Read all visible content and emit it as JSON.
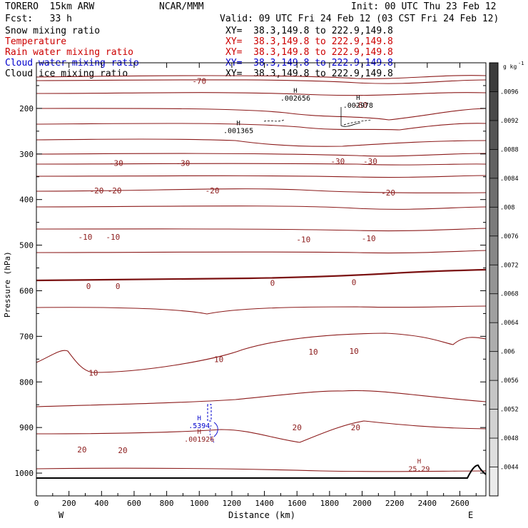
{
  "header": {
    "model": "TORERO  15km ARW",
    "org": "NCAR/MMM",
    "init": "Init: 00 UTC Thu 23 Feb 12",
    "fcst": "Fcst:   33 h",
    "valid": "Valid: 09 UTC Fri 24 Feb 12 (03 CST Fri 24 Feb 12)"
  },
  "fields": [
    {
      "name": "Snow mixing ratio",
      "xy": "XY=  38.3,149.8 to 222.9,149.8",
      "color": "#000000"
    },
    {
      "name": "Temperature",
      "xy": "XY=  38.3,149.8 to 222.9,149.8",
      "color": "#cc0000"
    },
    {
      "name": "Rain water mixing ratio",
      "xy": "XY=  38.3,149.8 to 222.9,149.8",
      "color": "#cc0000"
    },
    {
      "name": "Cloud water mixing ratio",
      "xy": "XY=  38.3,149.8 to 222.9,149.8",
      "color": "#0000cc"
    },
    {
      "name": "Cloud ice mixing ratio",
      "xy": "XY=  38.3,149.8 to 222.9,149.8",
      "color": "#000000"
    }
  ],
  "chart_data": {
    "type": "contour",
    "xlabel": "Distance (km)",
    "ylabel": "Pressure (hPa)",
    "xlim": [
      0,
      2760
    ],
    "ylim": [
      1050,
      100
    ],
    "x_ticks": [
      0,
      200,
      400,
      600,
      800,
      1000,
      1200,
      1400,
      1600,
      1800,
      2000,
      2200,
      2400,
      2600
    ],
    "y_ticks": [
      200,
      300,
      400,
      500,
      600,
      700,
      800,
      900,
      1000
    ],
    "x_end_labels": [
      "W",
      "E"
    ],
    "colorbar": {
      "unit": "g kg",
      "unit_exp": "-1",
      "ticks": [
        ".0096",
        ".0092",
        ".0088",
        ".0084",
        ".008",
        ".0076",
        ".0072",
        ".0068",
        ".0064",
        ".006",
        ".0056",
        ".0052",
        ".0048",
        ".0044"
      ]
    },
    "temperature_labels": [
      {
        "text": "-70",
        "x": 1000,
        "p": 140
      },
      {
        "text": "-60",
        "x": 1990,
        "p": 192
      },
      {
        "text": "-30",
        "x": 490,
        "p": 320
      },
      {
        "text": "-30",
        "x": 900,
        "p": 320
      },
      {
        "text": "-30",
        "x": 1850,
        "p": 316
      },
      {
        "text": "-30",
        "x": 2050,
        "p": 316
      },
      {
        "text": "-20",
        "x": 370,
        "p": 380
      },
      {
        "text": "-20",
        "x": 480,
        "p": 380
      },
      {
        "text": "-20",
        "x": 1080,
        "p": 380
      },
      {
        "text": "-20",
        "x": 2160,
        "p": 385
      },
      {
        "text": "-10",
        "x": 300,
        "p": 482
      },
      {
        "text": "-10",
        "x": 470,
        "p": 482
      },
      {
        "text": "-10",
        "x": 1640,
        "p": 487
      },
      {
        "text": "-10",
        "x": 2040,
        "p": 485
      },
      {
        "text": "0",
        "x": 320,
        "p": 590
      },
      {
        "text": "0",
        "x": 500,
        "p": 590
      },
      {
        "text": "0",
        "x": 1450,
        "p": 583
      },
      {
        "text": "0",
        "x": 1950,
        "p": 581
      },
      {
        "text": "10",
        "x": 350,
        "p": 780
      },
      {
        "text": "10",
        "x": 1120,
        "p": 750
      },
      {
        "text": "10",
        "x": 1700,
        "p": 734
      },
      {
        "text": "10",
        "x": 1950,
        "p": 732
      },
      {
        "text": "20",
        "x": 280,
        "p": 948
      },
      {
        "text": "20",
        "x": 530,
        "p": 950
      },
      {
        "text": "20",
        "x": 1600,
        "p": 900
      },
      {
        "text": "20",
        "x": 1960,
        "p": 900
      }
    ],
    "highs": [
      {
        "label": "H",
        "value": ".002656",
        "x": 1590,
        "p": 177
      },
      {
        "label": "H",
        "value": ".002978",
        "x": 1975,
        "p": 192
      },
      {
        "label": "H",
        "value": ".001365",
        "x": 1240,
        "p": 248
      },
      {
        "label": "H",
        "value": ".5394",
        "x": 1000,
        "p": 895
      },
      {
        "label": "H",
        "value": ".001926",
        "x": 1000,
        "p": 925
      },
      {
        "label": "H",
        "value": "25.29",
        "x": 2350,
        "p": 990
      }
    ]
  }
}
